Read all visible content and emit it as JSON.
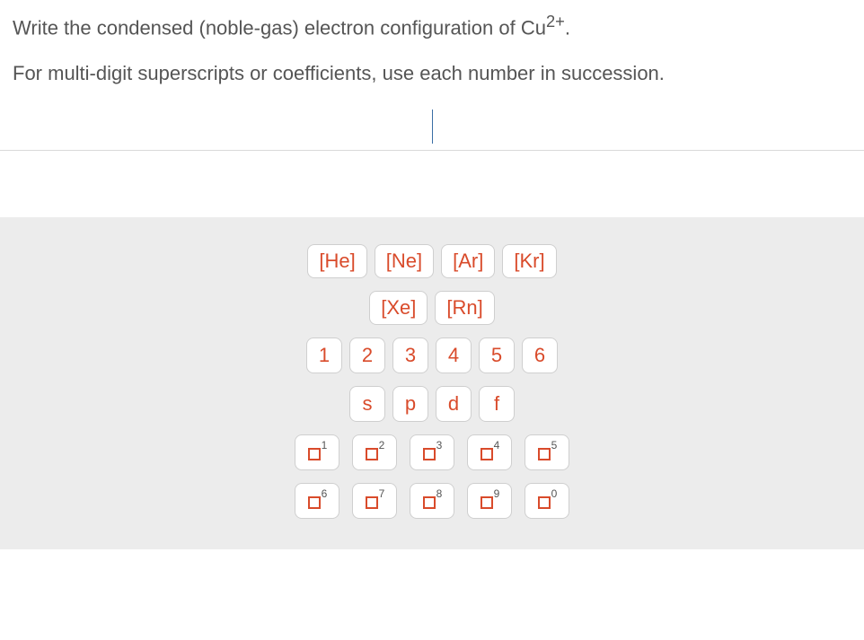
{
  "question": {
    "line1_pre": "Write the condensed (noble-gas) electron configuration of Cu",
    "line1_sup": "2+",
    "line1_post": ".",
    "line2": "For multi-digit superscripts or coefficients, use each number in succession."
  },
  "palette": {
    "nobleRow1": [
      "[He]",
      "[Ne]",
      "[Ar]",
      "[Kr]"
    ],
    "nobleRow2": [
      "[Xe]",
      "[Rn]"
    ],
    "numbers": [
      "1",
      "2",
      "3",
      "4",
      "5",
      "6"
    ],
    "orbitals": [
      "s",
      "p",
      "d",
      "f"
    ],
    "supRow1": [
      "1",
      "2",
      "3",
      "4",
      "5"
    ],
    "supRow2": [
      "6",
      "7",
      "8",
      "9",
      "0"
    ]
  },
  "style": {
    "text_color": "#555555",
    "accent_color": "#d94b2b",
    "palette_bg": "#ececec",
    "btn_bg": "#ffffff",
    "btn_border": "#cfcfcf",
    "cursor_color": "#3a6ea5",
    "question_fontsize": 22,
    "btn_fontsize": 22,
    "sup_fontsize": 12
  }
}
